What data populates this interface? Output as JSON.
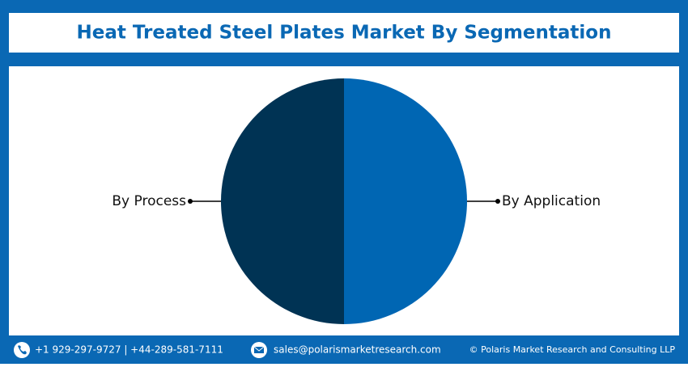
{
  "chart_data": {
    "type": "pie",
    "title": "Heat Treated Steel Plates Market By Segmentation",
    "categories": [
      "By Application",
      "By Process"
    ],
    "values": [
      50,
      50
    ],
    "colors": [
      "#0066b3",
      "#003354"
    ]
  },
  "footer": {
    "phone": "+1 929-297-9727 | +44-289-581-7111",
    "email": "sales@polarismarketresearch.com",
    "copyright": "© Polaris Market Research and Consulting LLP"
  }
}
